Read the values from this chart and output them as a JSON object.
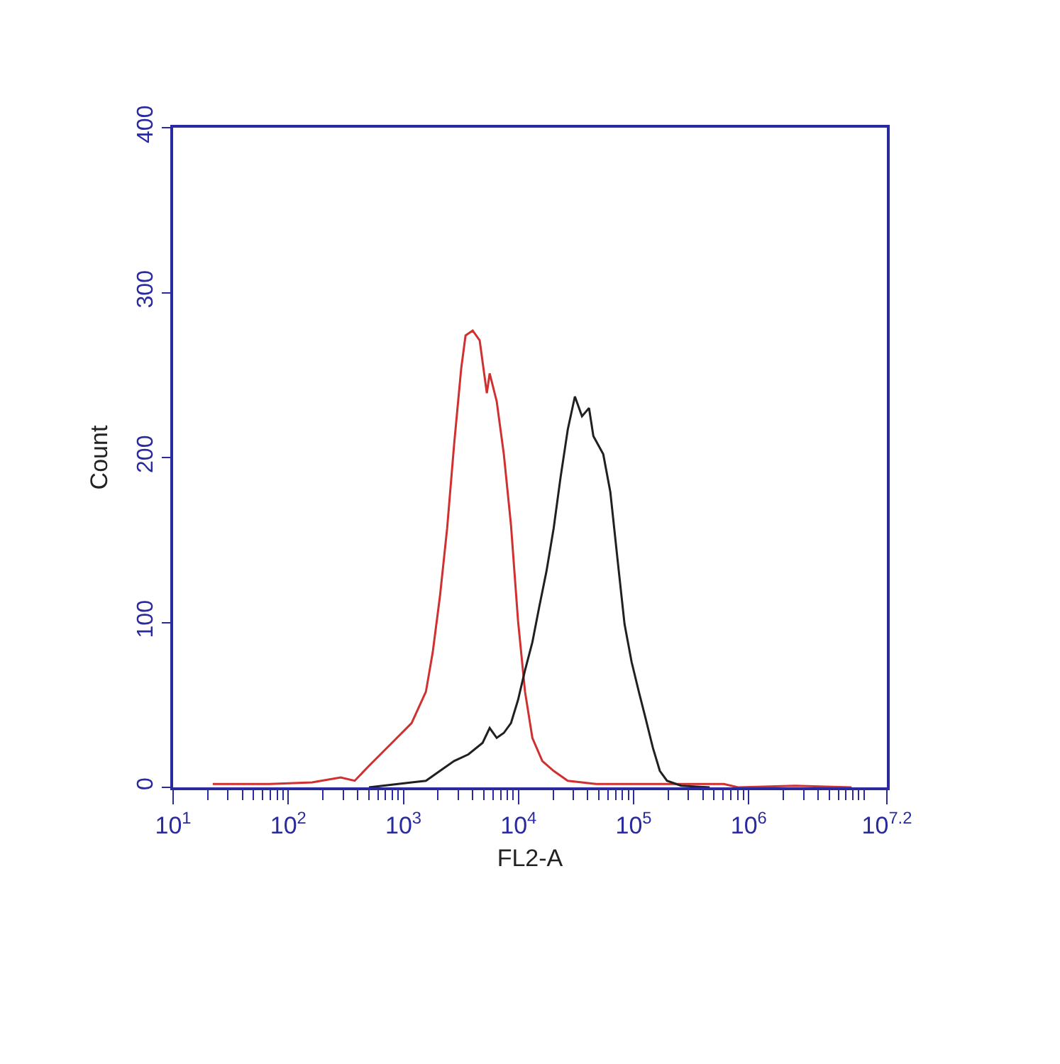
{
  "chart_data": {
    "type": "line",
    "xlabel": "FL2-A",
    "ylabel": "Count",
    "log": "x",
    "grid": false,
    "marker": "none",
    "line_style": "solid",
    "xlim": [
      10,
      15848932
    ],
    "ylim": [
      0,
      400
    ],
    "xticks": [
      {
        "value": 10,
        "label": "10$^{1}$"
      },
      {
        "value": 100,
        "label": "10$^{2}$"
      },
      {
        "value": 1000,
        "label": "10$^{3}$"
      },
      {
        "value": 10000,
        "label": "10$^{4}$"
      },
      {
        "value": 100000,
        "label": "10$^{5}$"
      },
      {
        "value": 1000000,
        "label": "10$^{6}$"
      },
      {
        "value": 15848932,
        "label": "10$^{7.2}$"
      }
    ],
    "yticks": [
      0,
      100,
      200,
      300,
      400
    ],
    "series": [
      {
        "color": "#d03030",
        "x": [
          22.1,
          68.9,
          161,
          285,
          378,
          502,
          771,
          1180,
          1570,
          1800,
          2080,
          2400,
          2760,
          3180,
          3470,
          4000,
          4600,
          5310,
          5620,
          6470,
          7460,
          8610,
          9910,
          11400,
          13200,
          16100,
          20200,
          26800,
          47200,
          111000,
          608000,
          809000,
          2520000,
          7830000
        ],
        "values": [
          2,
          2,
          3,
          6,
          4,
          13,
          26,
          39,
          58,
          82,
          116,
          157,
          208,
          254,
          274,
          277,
          271,
          239,
          251,
          234,
          202,
          159,
          101,
          58,
          30,
          16,
          10,
          4,
          2,
          2,
          2,
          0,
          1,
          0
        ]
      },
      {
        "color": "#202020",
        "x": [
          502,
          1180,
          1570,
          2080,
          2760,
          3670,
          4880,
          5620,
          6470,
          7460,
          8610,
          9910,
          11400,
          13200,
          15200,
          17500,
          20200,
          23200,
          26800,
          30900,
          35600,
          41000,
          44700,
          54500,
          62800,
          72300,
          83400,
          96100,
          111000,
          128000,
          147000,
          169000,
          195000,
          259000,
          458000
        ],
        "values": [
          0,
          3,
          4,
          10,
          16,
          20,
          27,
          36,
          30,
          33,
          39,
          53,
          71,
          88,
          110,
          131,
          157,
          188,
          217,
          237,
          225,
          230,
          213,
          202,
          179,
          139,
          99,
          76,
          58,
          41,
          24,
          10,
          4,
          1,
          0
        ]
      }
    ]
  }
}
